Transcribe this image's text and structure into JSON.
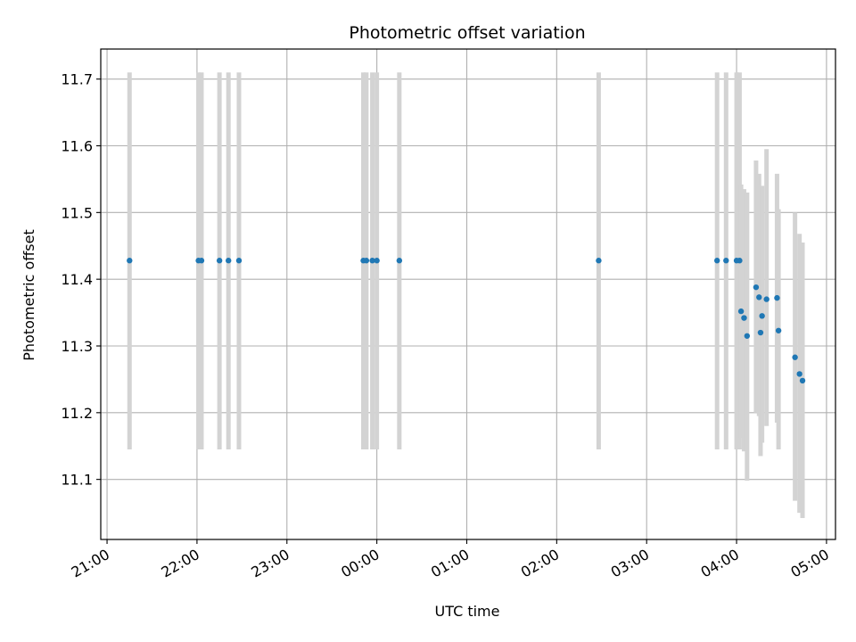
{
  "chart_data": {
    "type": "scatter",
    "title": "Photometric offset variation",
    "xlabel": "UTC time",
    "ylabel": "Photometric offset",
    "x_tick_labels": [
      "21:00",
      "22:00",
      "23:00",
      "00:00",
      "01:00",
      "02:00",
      "03:00",
      "04:00",
      "05:00"
    ],
    "y_tick_labels": [
      "11.1",
      "11.2",
      "11.3",
      "11.4",
      "11.5",
      "11.6",
      "11.7"
    ],
    "y_ticks": [
      11.1,
      11.2,
      11.3,
      11.4,
      11.5,
      11.6,
      11.7
    ],
    "xlim_hours": [
      20.93,
      29.1
    ],
    "ylim": [
      11.01,
      11.745
    ],
    "grid": true,
    "colors": {
      "points": "#1f77b4",
      "error_bars": "#d3d3d3",
      "grid": "#b0b0b0"
    },
    "points": [
      {
        "t": "21:15",
        "y": 11.428,
        "lo": 11.145,
        "hi": 11.71
      },
      {
        "t": "22:01",
        "y": 11.428,
        "lo": 11.145,
        "hi": 11.71
      },
      {
        "t": "22:03",
        "y": 11.428,
        "lo": 11.145,
        "hi": 11.71
      },
      {
        "t": "22:15",
        "y": 11.428,
        "lo": 11.145,
        "hi": 11.71
      },
      {
        "t": "22:21",
        "y": 11.428,
        "lo": 11.145,
        "hi": 11.71
      },
      {
        "t": "22:28",
        "y": 11.428,
        "lo": 11.145,
        "hi": 11.71
      },
      {
        "t": "23:51",
        "y": 11.428,
        "lo": 11.145,
        "hi": 11.71
      },
      {
        "t": "23:53",
        "y": 11.428,
        "lo": 11.145,
        "hi": 11.71
      },
      {
        "t": "23:57",
        "y": 11.428,
        "lo": 11.145,
        "hi": 11.71
      },
      {
        "t": "00:00",
        "y": 11.428,
        "lo": 11.145,
        "hi": 11.71
      },
      {
        "t": "00:15",
        "y": 11.428,
        "lo": 11.145,
        "hi": 11.71
      },
      {
        "t": "02:28",
        "y": 11.428,
        "lo": 11.145,
        "hi": 11.71
      },
      {
        "t": "03:47",
        "y": 11.428,
        "lo": 11.145,
        "hi": 11.71
      },
      {
        "t": "03:53",
        "y": 11.428,
        "lo": 11.145,
        "hi": 11.71
      },
      {
        "t": "04:00",
        "y": 11.428,
        "lo": 11.145,
        "hi": 11.71
      },
      {
        "t": "04:02",
        "y": 11.428,
        "lo": 11.145,
        "hi": 11.71
      },
      {
        "t": "04:03",
        "y": 11.352,
        "lo": 11.162,
        "hi": 11.542
      },
      {
        "t": "04:05",
        "y": 11.342,
        "lo": 11.142,
        "hi": 11.535
      },
      {
        "t": "04:07",
        "y": 11.315,
        "lo": 11.098,
        "hi": 11.53
      },
      {
        "t": "04:13",
        "y": 11.388,
        "lo": 11.2,
        "hi": 11.578
      },
      {
        "t": "04:15",
        "y": 11.373,
        "lo": 11.195,
        "hi": 11.558
      },
      {
        "t": "04:16",
        "y": 11.32,
        "lo": 11.135,
        "hi": 11.505
      },
      {
        "t": "04:17",
        "y": 11.345,
        "lo": 11.155,
        "hi": 11.54
      },
      {
        "t": "04:20",
        "y": 11.37,
        "lo": 11.18,
        "hi": 11.595
      },
      {
        "t": "04:27",
        "y": 11.372,
        "lo": 11.185,
        "hi": 11.558
      },
      {
        "t": "04:28",
        "y": 11.323,
        "lo": 11.145,
        "hi": 11.505
      },
      {
        "t": "04:39",
        "y": 11.283,
        "lo": 11.068,
        "hi": 11.5
      },
      {
        "t": "04:42",
        "y": 11.258,
        "lo": 11.05,
        "hi": 11.468
      },
      {
        "t": "04:44",
        "y": 11.248,
        "lo": 11.042,
        "hi": 11.455
      }
    ]
  }
}
